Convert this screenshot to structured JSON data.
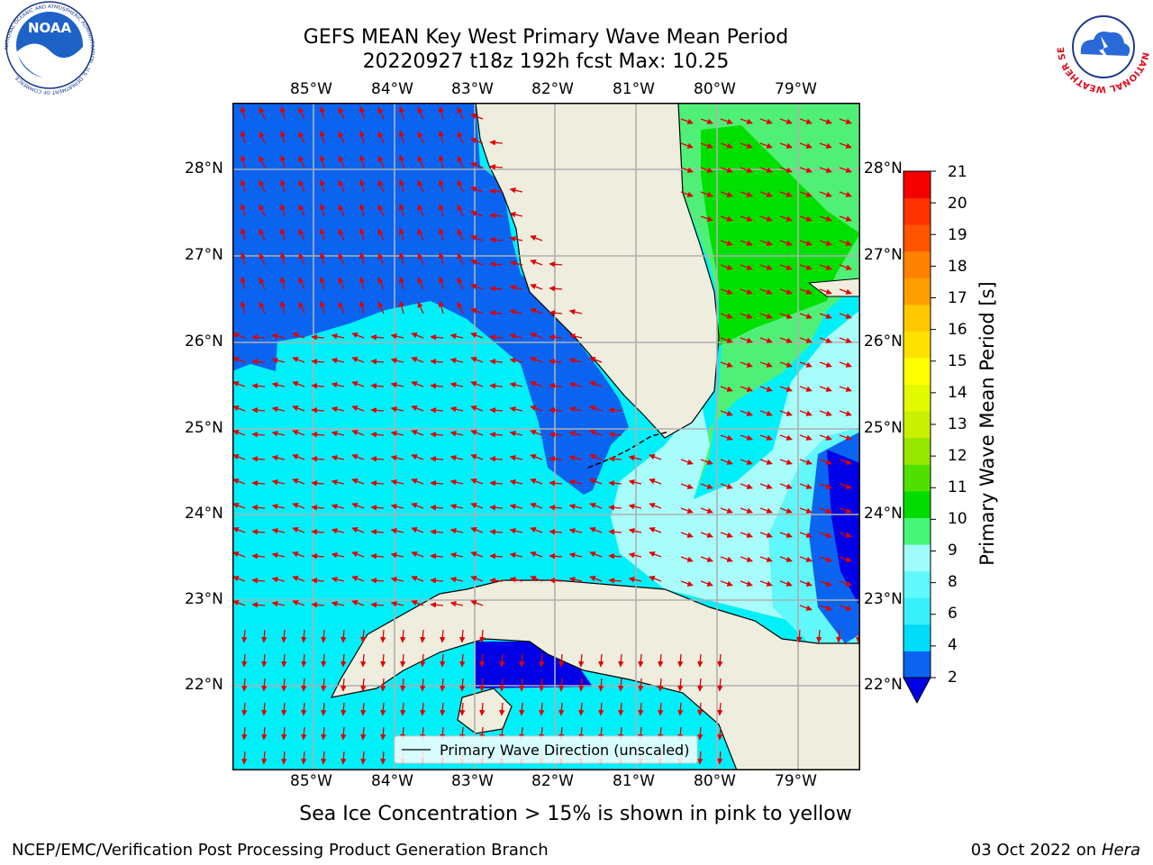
{
  "title": {
    "line1": "GEFS MEAN Key West Primary Wave Mean Period",
    "line2": "20220927 t18z 192h fcst   Max: 10.25"
  },
  "map": {
    "lon_ticks": [
      "85°W",
      "84°W",
      "83°W",
      "82°W",
      "81°W",
      "80°W",
      "79°W"
    ],
    "lat_ticks": [
      "28°N",
      "27°N",
      "26°N",
      "25°N",
      "24°N",
      "23°N",
      "22°N"
    ],
    "legend_label": "Primary Wave Direction (unscaled)"
  },
  "colorbar": {
    "label": "Primary Wave Mean Period [s]",
    "ticks": [
      "2",
      "4",
      "6",
      "8",
      "9",
      "10",
      "11",
      "12",
      "13",
      "14",
      "15",
      "16",
      "17",
      "18",
      "19",
      "20",
      "21"
    ],
    "colors": [
      "#0a64f0",
      "#00dcfa",
      "#38f0fa",
      "#60f8fa",
      "#a0fcfa",
      "#44f578",
      "#00dc00",
      "#50e000",
      "#96e600",
      "#c8f000",
      "#e1fa00",
      "#ffff00",
      "#ffe100",
      "#ffc800",
      "#ffa000",
      "#ff8200",
      "#ff5500",
      "#ff3200",
      "#f50000"
    ],
    "extend_color": "#0000e6"
  },
  "logos": {
    "noaa_text": "NOAA",
    "noaa_ring": "NATIONAL OCEANIC AND ATMOSPHERIC ADMINISTRATION · U.S. DEPARTMENT OF COMMERCE",
    "nws_ring": "NATIONAL WEATHER SERVICE"
  },
  "note": "Sea Ice Concentration > 15% is shown in pink to yellow",
  "footer": {
    "left": "NCEP/EMC/Verification Post Processing Product Generation Branch",
    "right_prefix": "03 Oct 2022 on ",
    "right_host": "Hera"
  },
  "colors": {
    "land": "#efedde",
    "blue": "#0a64f0",
    "cyan": "#00f0fa",
    "pale_cyan": "#60f8fa",
    "light_cyan": "#a8fcfa",
    "light_green": "#50f078",
    "green": "#00e000",
    "dark_blue": "#0000e6",
    "arrow": "#e00000"
  }
}
